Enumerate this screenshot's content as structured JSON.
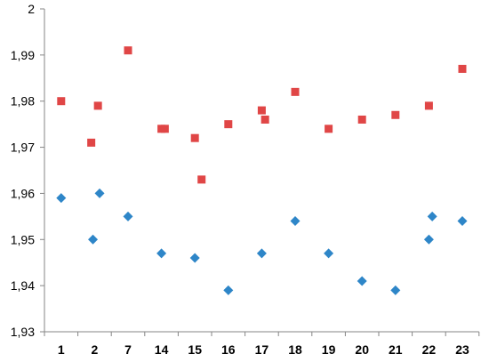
{
  "chart_data": {
    "type": "scatter",
    "title": "",
    "xlabel": "",
    "ylabel": "",
    "grid": false,
    "categories": [
      "1",
      "2",
      "7",
      "14",
      "15",
      "16",
      "17",
      "18",
      "19",
      "20",
      "21",
      "22",
      "23"
    ],
    "ylim": [
      1.93,
      2.0
    ],
    "yticks": [
      "1,93",
      "1,94",
      "1,95",
      "1,96",
      "1,97",
      "1,98",
      "1,99",
      "2"
    ],
    "series": [
      {
        "marker": "square",
        "color": "#e04646",
        "points": [
          {
            "x": 1,
            "y": 1.98
          },
          {
            "x": 1.9,
            "y": 1.971
          },
          {
            "x": 2.1,
            "y": 1.979
          },
          {
            "x": 3,
            "y": 1.991
          },
          {
            "x": 4,
            "y": 1.974
          },
          {
            "x": 4.1,
            "y": 1.974
          },
          {
            "x": 5,
            "y": 1.972
          },
          {
            "x": 5.2,
            "y": 1.963
          },
          {
            "x": 6,
            "y": 1.975
          },
          {
            "x": 7,
            "y": 1.978
          },
          {
            "x": 7.1,
            "y": 1.976
          },
          {
            "x": 8,
            "y": 1.982
          },
          {
            "x": 9,
            "y": 1.974
          },
          {
            "x": 10,
            "y": 1.976
          },
          {
            "x": 11,
            "y": 1.977
          },
          {
            "x": 12,
            "y": 1.979
          },
          {
            "x": 13,
            "y": 1.987
          }
        ]
      },
      {
        "marker": "diamond",
        "color": "#2e86c8",
        "points": [
          {
            "x": 1,
            "y": 1.959
          },
          {
            "x": 1.95,
            "y": 1.95
          },
          {
            "x": 2.15,
            "y": 1.96
          },
          {
            "x": 3,
            "y": 1.955
          },
          {
            "x": 4,
            "y": 1.947
          },
          {
            "x": 5,
            "y": 1.946
          },
          {
            "x": 6,
            "y": 1.939
          },
          {
            "x": 7,
            "y": 1.947
          },
          {
            "x": 8,
            "y": 1.954
          },
          {
            "x": 9,
            "y": 1.947
          },
          {
            "x": 10,
            "y": 1.941
          },
          {
            "x": 11,
            "y": 1.939
          },
          {
            "x": 12,
            "y": 1.95
          },
          {
            "x": 12.1,
            "y": 1.955
          },
          {
            "x": 13,
            "y": 1.954
          }
        ]
      }
    ]
  }
}
